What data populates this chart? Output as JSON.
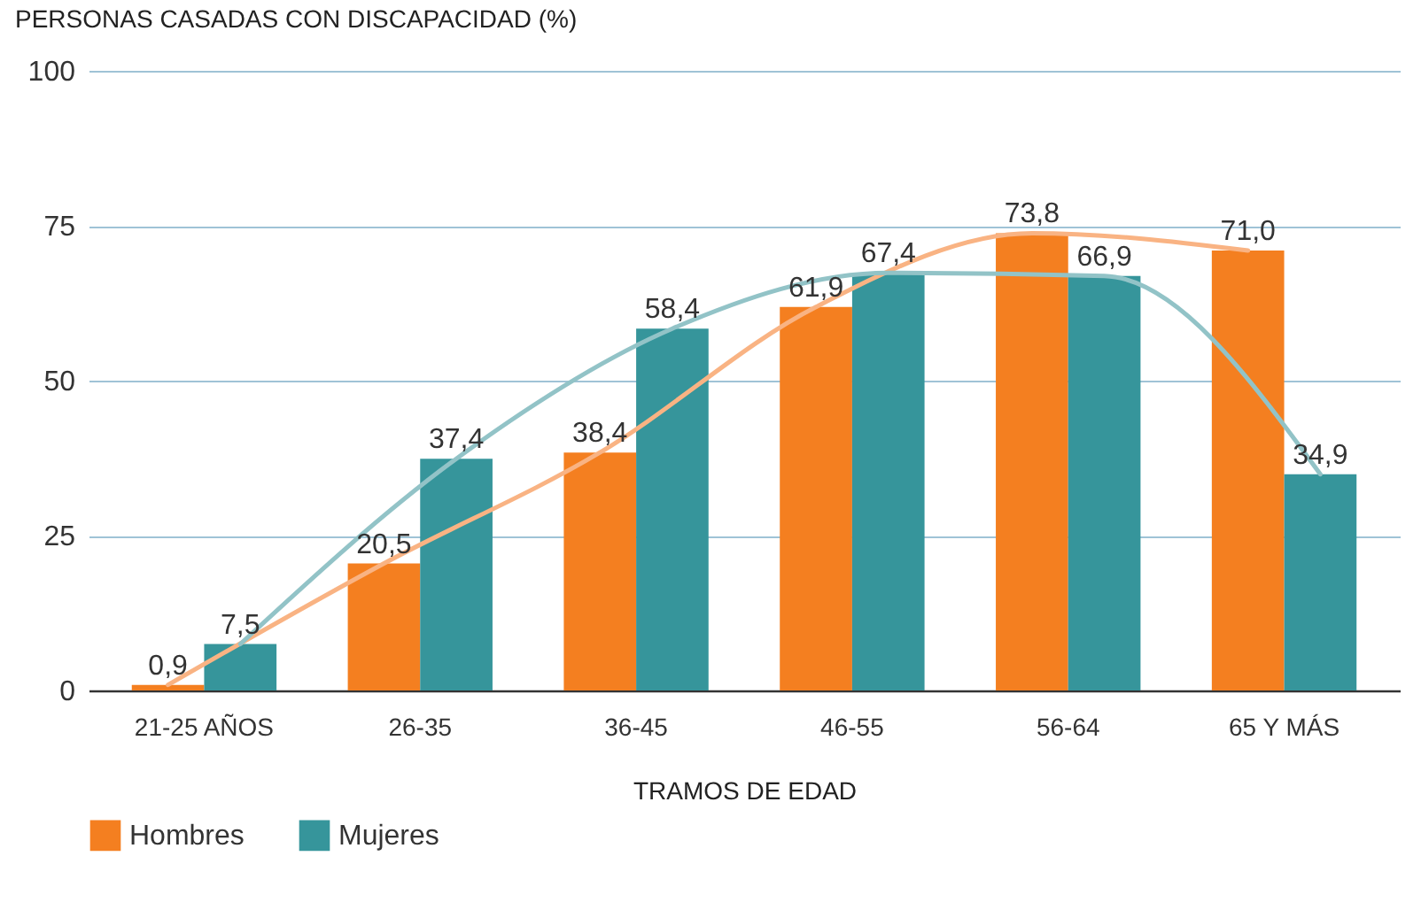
{
  "chart_data": {
    "type": "bar",
    "ylabel": "PERSONAS CASADAS CON DISCAPACIDAD (%)",
    "xlabel": "TRAMOS DE EDAD",
    "categories": [
      "21-25 AÑOS",
      "26-35",
      "36-45",
      "46-55",
      "56-64",
      "65 Y MÁS"
    ],
    "series": [
      {
        "name": "Hombres",
        "color": "#f47f20",
        "values": [
          0.9,
          20.5,
          38.4,
          61.9,
          73.8,
          71.0
        ],
        "value_labels": [
          "0,9",
          "20,5",
          "38,4",
          "61,9",
          "73,8",
          "71,0"
        ]
      },
      {
        "name": "Mujeres",
        "color": "#36959b",
        "values": [
          7.5,
          37.4,
          58.4,
          67.4,
          66.9,
          34.9
        ],
        "value_labels": [
          "7,5",
          "37,4",
          "58,4",
          "67,4",
          "66,9",
          "34,9"
        ]
      },
      {
        "type": "line",
        "color": "#f9b383",
        "values": [
          0.9,
          20.5,
          38.4,
          61.9,
          73.8,
          71.0
        ]
      },
      {
        "type": "line",
        "color": "#92c3c7",
        "values": [
          7.5,
          37.4,
          58.4,
          67.4,
          66.9,
          34.9
        ]
      }
    ],
    "ylim": [
      0,
      100
    ],
    "yticks": [
      0,
      25,
      50,
      75,
      100
    ],
    "grid": "y",
    "legend": "bottom"
  }
}
